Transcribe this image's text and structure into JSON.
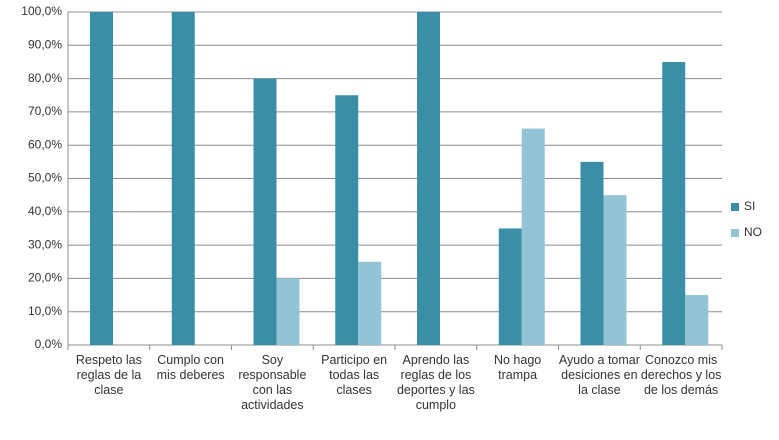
{
  "chart_data": {
    "type": "bar",
    "categories": [
      "Respeto las reglas de la clase",
      "Cumplo con mis deberes",
      "Soy responsable con las actividades",
      "Participo en todas las clases",
      "Aprendo las reglas de los deportes y las cumplo",
      "No hago trampa",
      "Ayudo a tomar desiciones en la clase",
      "Conozco mis derechos y los de los demás"
    ],
    "series": [
      {
        "name": "SI",
        "color": "#3a8fa6",
        "values": [
          100,
          100,
          80,
          75,
          100,
          35,
          55,
          85
        ]
      },
      {
        "name": "NO",
        "color": "#93c4d6",
        "values": [
          0,
          0,
          20,
          25,
          0,
          65,
          45,
          15
        ]
      }
    ],
    "ylim": [
      0,
      100
    ],
    "yticks": [
      {
        "value": 0,
        "label": "0,0%"
      },
      {
        "value": 10,
        "label": "10,0%"
      },
      {
        "value": 20,
        "label": "20,0%"
      },
      {
        "value": 30,
        "label": "30,0%"
      },
      {
        "value": 40,
        "label": "40,0%"
      },
      {
        "value": 50,
        "label": "50,0%"
      },
      {
        "value": 60,
        "label": "60,0%"
      },
      {
        "value": 70,
        "label": "70,0%"
      },
      {
        "value": 80,
        "label": "80,0%"
      },
      {
        "value": 90,
        "label": "90,0%"
      },
      {
        "value": 100,
        "label": "100,0%"
      }
    ],
    "grid": true,
    "legend": "right"
  }
}
